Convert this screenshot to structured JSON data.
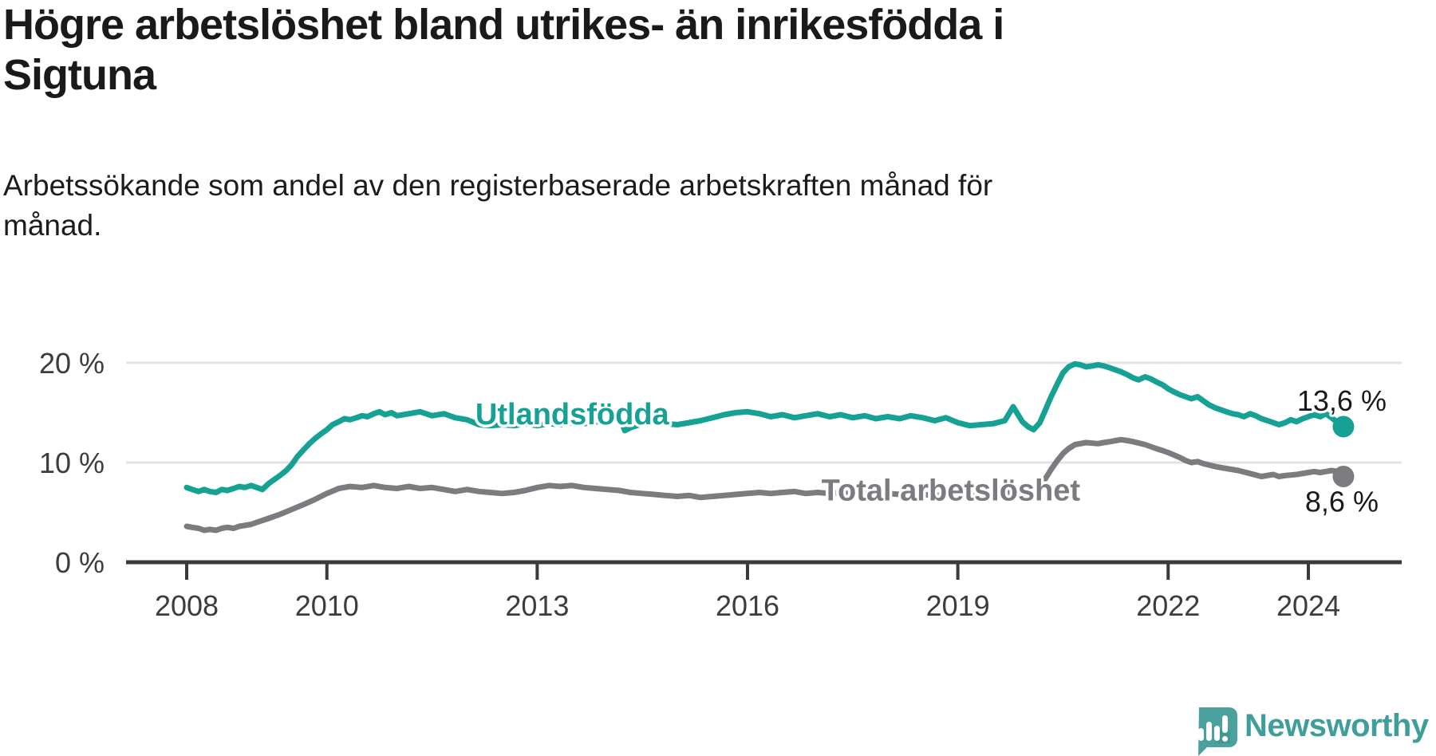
{
  "header": {
    "title_lines": [
      "Högre arbetslöshet bland utrikes- än inrikesfödda i",
      "Sigtuna"
    ],
    "subtitle_lines": [
      "Arbetssökande som andel av den registerbaserade arbetskraften månad för",
      "månad."
    ]
  },
  "footer": {
    "brand": "Newsworthy"
  },
  "colors": {
    "teal_line": "#16a195",
    "gray_line": "#7b7b80",
    "axis": "#3a3a3a",
    "grid": "#e3e3e3",
    "tick_text": "#3d3d3d",
    "value_text": "#1a1a1a",
    "logo_teal": "#4ba19d",
    "logo_text_teal": "#3f9e99"
  },
  "chart_data": {
    "type": "line",
    "title": "Högre arbetslöshet bland utrikes- än inrikesfödda i Sigtuna",
    "subtitle": "Arbetssökande som andel av den registerbaserade arbetskraften månad för månad.",
    "unit": "%",
    "grid": true,
    "legend_position": "inline-labels",
    "x_ticks": [
      2008,
      2010,
      2013,
      2016,
      2019,
      2022,
      2024
    ],
    "xlim": [
      2007.9,
      2025.3
    ],
    "ylim": [
      0,
      21.6
    ],
    "y_ticks": [
      {
        "value": 0,
        "label": "0 %"
      },
      {
        "value": 10,
        "label": "10 %"
      },
      {
        "value": 20,
        "label": "20 %"
      }
    ],
    "series": [
      {
        "name": "Utlandsfödda",
        "color": "#16a195",
        "end_value": 13.6,
        "end_label": "13,6 %",
        "label_anchor": {
          "year": 2013.5,
          "value": 13.85
        },
        "points": [
          [
            2008.0,
            7.5
          ],
          [
            2008.08,
            7.3
          ],
          [
            2008.17,
            7.1
          ],
          [
            2008.25,
            7.3
          ],
          [
            2008.33,
            7.1
          ],
          [
            2008.42,
            7.0
          ],
          [
            2008.5,
            7.3
          ],
          [
            2008.58,
            7.2
          ],
          [
            2008.67,
            7.4
          ],
          [
            2008.75,
            7.6
          ],
          [
            2008.83,
            7.5
          ],
          [
            2008.92,
            7.7
          ],
          [
            2009.0,
            7.5
          ],
          [
            2009.08,
            7.3
          ],
          [
            2009.17,
            7.9
          ],
          [
            2009.25,
            8.3
          ],
          [
            2009.33,
            8.7
          ],
          [
            2009.42,
            9.2
          ],
          [
            2009.5,
            9.8
          ],
          [
            2009.58,
            10.6
          ],
          [
            2009.67,
            11.3
          ],
          [
            2009.75,
            11.9
          ],
          [
            2009.83,
            12.4
          ],
          [
            2009.92,
            12.9
          ],
          [
            2010.0,
            13.3
          ],
          [
            2010.08,
            13.8
          ],
          [
            2010.17,
            14.1
          ],
          [
            2010.25,
            14.4
          ],
          [
            2010.33,
            14.3
          ],
          [
            2010.42,
            14.5
          ],
          [
            2010.5,
            14.7
          ],
          [
            2010.58,
            14.6
          ],
          [
            2010.67,
            14.9
          ],
          [
            2010.75,
            15.1
          ],
          [
            2010.83,
            14.8
          ],
          [
            2010.92,
            15.0
          ],
          [
            2011.0,
            14.7
          ],
          [
            2011.17,
            14.9
          ],
          [
            2011.33,
            15.1
          ],
          [
            2011.5,
            14.7
          ],
          [
            2011.67,
            14.9
          ],
          [
            2011.83,
            14.5
          ],
          [
            2012.0,
            14.3
          ],
          [
            2012.17,
            13.8
          ],
          [
            2012.33,
            13.7
          ],
          [
            2012.5,
            13.8
          ],
          [
            2012.67,
            13.7
          ],
          [
            2012.83,
            13.9
          ],
          [
            2013.0,
            13.7
          ],
          [
            2013.17,
            13.9
          ],
          [
            2013.33,
            13.8
          ],
          [
            2013.5,
            14.0
          ],
          [
            2013.67,
            13.9
          ],
          [
            2013.83,
            14.1
          ],
          [
            2014.0,
            14.0
          ],
          [
            2014.17,
            14.7
          ],
          [
            2014.25,
            13.2
          ],
          [
            2014.33,
            13.5
          ],
          [
            2014.5,
            13.9
          ],
          [
            2014.67,
            14.1
          ],
          [
            2014.83,
            13.9
          ],
          [
            2015.0,
            13.8
          ],
          [
            2015.17,
            14.0
          ],
          [
            2015.33,
            14.2
          ],
          [
            2015.5,
            14.5
          ],
          [
            2015.67,
            14.8
          ],
          [
            2015.83,
            15.0
          ],
          [
            2016.0,
            15.1
          ],
          [
            2016.17,
            14.9
          ],
          [
            2016.33,
            14.6
          ],
          [
            2016.5,
            14.8
          ],
          [
            2016.67,
            14.5
          ],
          [
            2016.83,
            14.7
          ],
          [
            2017.0,
            14.9
          ],
          [
            2017.17,
            14.6
          ],
          [
            2017.33,
            14.8
          ],
          [
            2017.5,
            14.5
          ],
          [
            2017.67,
            14.7
          ],
          [
            2017.83,
            14.4
          ],
          [
            2018.0,
            14.6
          ],
          [
            2018.17,
            14.4
          ],
          [
            2018.33,
            14.7
          ],
          [
            2018.5,
            14.5
          ],
          [
            2018.67,
            14.2
          ],
          [
            2018.83,
            14.5
          ],
          [
            2019.0,
            14.0
          ],
          [
            2019.17,
            13.7
          ],
          [
            2019.33,
            13.8
          ],
          [
            2019.5,
            13.9
          ],
          [
            2019.67,
            14.2
          ],
          [
            2019.79,
            15.6
          ],
          [
            2019.92,
            14.1
          ],
          [
            2020.0,
            13.6
          ],
          [
            2020.08,
            13.3
          ],
          [
            2020.17,
            14.0
          ],
          [
            2020.25,
            15.3
          ],
          [
            2020.33,
            16.6
          ],
          [
            2020.42,
            17.9
          ],
          [
            2020.5,
            19.0
          ],
          [
            2020.58,
            19.6
          ],
          [
            2020.67,
            19.9
          ],
          [
            2020.75,
            19.8
          ],
          [
            2020.83,
            19.6
          ],
          [
            2020.92,
            19.7
          ],
          [
            2021.0,
            19.8
          ],
          [
            2021.08,
            19.7
          ],
          [
            2021.17,
            19.5
          ],
          [
            2021.25,
            19.3
          ],
          [
            2021.33,
            19.1
          ],
          [
            2021.42,
            18.8
          ],
          [
            2021.5,
            18.5
          ],
          [
            2021.58,
            18.3
          ],
          [
            2021.67,
            18.6
          ],
          [
            2021.75,
            18.4
          ],
          [
            2021.83,
            18.1
          ],
          [
            2021.92,
            17.8
          ],
          [
            2022.0,
            17.4
          ],
          [
            2022.08,
            17.1
          ],
          [
            2022.17,
            16.8
          ],
          [
            2022.25,
            16.6
          ],
          [
            2022.33,
            16.4
          ],
          [
            2022.42,
            16.6
          ],
          [
            2022.5,
            16.2
          ],
          [
            2022.58,
            15.8
          ],
          [
            2022.67,
            15.5
          ],
          [
            2022.75,
            15.3
          ],
          [
            2022.83,
            15.1
          ],
          [
            2022.92,
            14.9
          ],
          [
            2023.0,
            14.8
          ],
          [
            2023.08,
            14.6
          ],
          [
            2023.17,
            14.9
          ],
          [
            2023.25,
            14.7
          ],
          [
            2023.33,
            14.4
          ],
          [
            2023.42,
            14.2
          ],
          [
            2023.5,
            14.0
          ],
          [
            2023.58,
            13.8
          ],
          [
            2023.67,
            14.0
          ],
          [
            2023.75,
            14.3
          ],
          [
            2023.83,
            14.1
          ],
          [
            2023.92,
            14.4
          ],
          [
            2024.0,
            14.6
          ],
          [
            2024.08,
            14.8
          ],
          [
            2024.17,
            14.6
          ],
          [
            2024.25,
            14.9
          ],
          [
            2024.33,
            14.5
          ],
          [
            2024.42,
            14.0
          ],
          [
            2024.5,
            13.6
          ]
        ]
      },
      {
        "name": "Total arbetslöshet",
        "color": "#7b7b80",
        "end_value": 8.6,
        "end_label": "8,6 %",
        "label_anchor": {
          "year": 2018.9,
          "value": 6.2
        },
        "points": [
          [
            2008.0,
            3.6
          ],
          [
            2008.08,
            3.5
          ],
          [
            2008.17,
            3.4
          ],
          [
            2008.25,
            3.2
          ],
          [
            2008.33,
            3.3
          ],
          [
            2008.42,
            3.2
          ],
          [
            2008.5,
            3.4
          ],
          [
            2008.58,
            3.5
          ],
          [
            2008.67,
            3.4
          ],
          [
            2008.75,
            3.6
          ],
          [
            2008.83,
            3.7
          ],
          [
            2008.92,
            3.8
          ],
          [
            2009.0,
            4.0
          ],
          [
            2009.17,
            4.4
          ],
          [
            2009.33,
            4.8
          ],
          [
            2009.5,
            5.3
          ],
          [
            2009.67,
            5.8
          ],
          [
            2009.83,
            6.3
          ],
          [
            2010.0,
            6.9
          ],
          [
            2010.17,
            7.4
          ],
          [
            2010.33,
            7.6
          ],
          [
            2010.5,
            7.5
          ],
          [
            2010.67,
            7.7
          ],
          [
            2010.83,
            7.5
          ],
          [
            2011.0,
            7.4
          ],
          [
            2011.17,
            7.6
          ],
          [
            2011.33,
            7.4
          ],
          [
            2011.5,
            7.5
          ],
          [
            2011.67,
            7.3
          ],
          [
            2011.83,
            7.1
          ],
          [
            2012.0,
            7.3
          ],
          [
            2012.17,
            7.1
          ],
          [
            2012.33,
            7.0
          ],
          [
            2012.5,
            6.9
          ],
          [
            2012.67,
            7.0
          ],
          [
            2012.83,
            7.2
          ],
          [
            2013.0,
            7.5
          ],
          [
            2013.17,
            7.7
          ],
          [
            2013.33,
            7.6
          ],
          [
            2013.5,
            7.7
          ],
          [
            2013.67,
            7.5
          ],
          [
            2013.83,
            7.4
          ],
          [
            2014.0,
            7.3
          ],
          [
            2014.17,
            7.2
          ],
          [
            2014.33,
            7.0
          ],
          [
            2014.5,
            6.9
          ],
          [
            2014.67,
            6.8
          ],
          [
            2014.83,
            6.7
          ],
          [
            2015.0,
            6.6
          ],
          [
            2015.17,
            6.7
          ],
          [
            2015.33,
            6.5
          ],
          [
            2015.5,
            6.6
          ],
          [
            2015.67,
            6.7
          ],
          [
            2015.83,
            6.8
          ],
          [
            2016.0,
            6.9
          ],
          [
            2016.17,
            7.0
          ],
          [
            2016.33,
            6.9
          ],
          [
            2016.5,
            7.0
          ],
          [
            2016.67,
            7.1
          ],
          [
            2016.83,
            6.9
          ],
          [
            2017.0,
            7.0
          ],
          [
            2017.17,
            6.9
          ],
          [
            2017.33,
            7.0
          ],
          [
            2017.5,
            6.8
          ],
          [
            2017.67,
            6.9
          ],
          [
            2017.83,
            6.8
          ],
          [
            2018.0,
            6.9
          ],
          [
            2018.17,
            6.8
          ],
          [
            2018.33,
            6.9
          ],
          [
            2018.5,
            6.8
          ],
          [
            2018.67,
            6.7
          ],
          [
            2018.83,
            6.8
          ],
          [
            2019.0,
            6.7
          ],
          [
            2019.17,
            6.6
          ],
          [
            2019.33,
            6.7
          ],
          [
            2019.5,
            6.8
          ],
          [
            2019.67,
            7.0
          ],
          [
            2019.83,
            6.9
          ],
          [
            2020.0,
            7.0
          ],
          [
            2020.08,
            7.1
          ],
          [
            2020.17,
            7.7
          ],
          [
            2020.25,
            8.4
          ],
          [
            2020.33,
            9.3
          ],
          [
            2020.42,
            10.2
          ],
          [
            2020.5,
            10.9
          ],
          [
            2020.58,
            11.4
          ],
          [
            2020.67,
            11.8
          ],
          [
            2020.83,
            12.0
          ],
          [
            2021.0,
            11.9
          ],
          [
            2021.08,
            12.0
          ],
          [
            2021.17,
            12.1
          ],
          [
            2021.25,
            12.2
          ],
          [
            2021.33,
            12.3
          ],
          [
            2021.42,
            12.2
          ],
          [
            2021.5,
            12.1
          ],
          [
            2021.67,
            11.8
          ],
          [
            2021.83,
            11.4
          ],
          [
            2021.92,
            11.2
          ],
          [
            2022.0,
            11.0
          ],
          [
            2022.17,
            10.5
          ],
          [
            2022.25,
            10.2
          ],
          [
            2022.33,
            10.0
          ],
          [
            2022.42,
            10.1
          ],
          [
            2022.5,
            9.9
          ],
          [
            2022.67,
            9.6
          ],
          [
            2022.83,
            9.4
          ],
          [
            2023.0,
            9.2
          ],
          [
            2023.17,
            8.9
          ],
          [
            2023.33,
            8.6
          ],
          [
            2023.5,
            8.8
          ],
          [
            2023.58,
            8.6
          ],
          [
            2023.67,
            8.7
          ],
          [
            2023.83,
            8.8
          ],
          [
            2024.0,
            9.0
          ],
          [
            2024.08,
            9.1
          ],
          [
            2024.17,
            9.0
          ],
          [
            2024.25,
            9.1
          ],
          [
            2024.33,
            9.2
          ],
          [
            2024.42,
            9.1
          ],
          [
            2024.5,
            8.6
          ]
        ]
      }
    ]
  }
}
